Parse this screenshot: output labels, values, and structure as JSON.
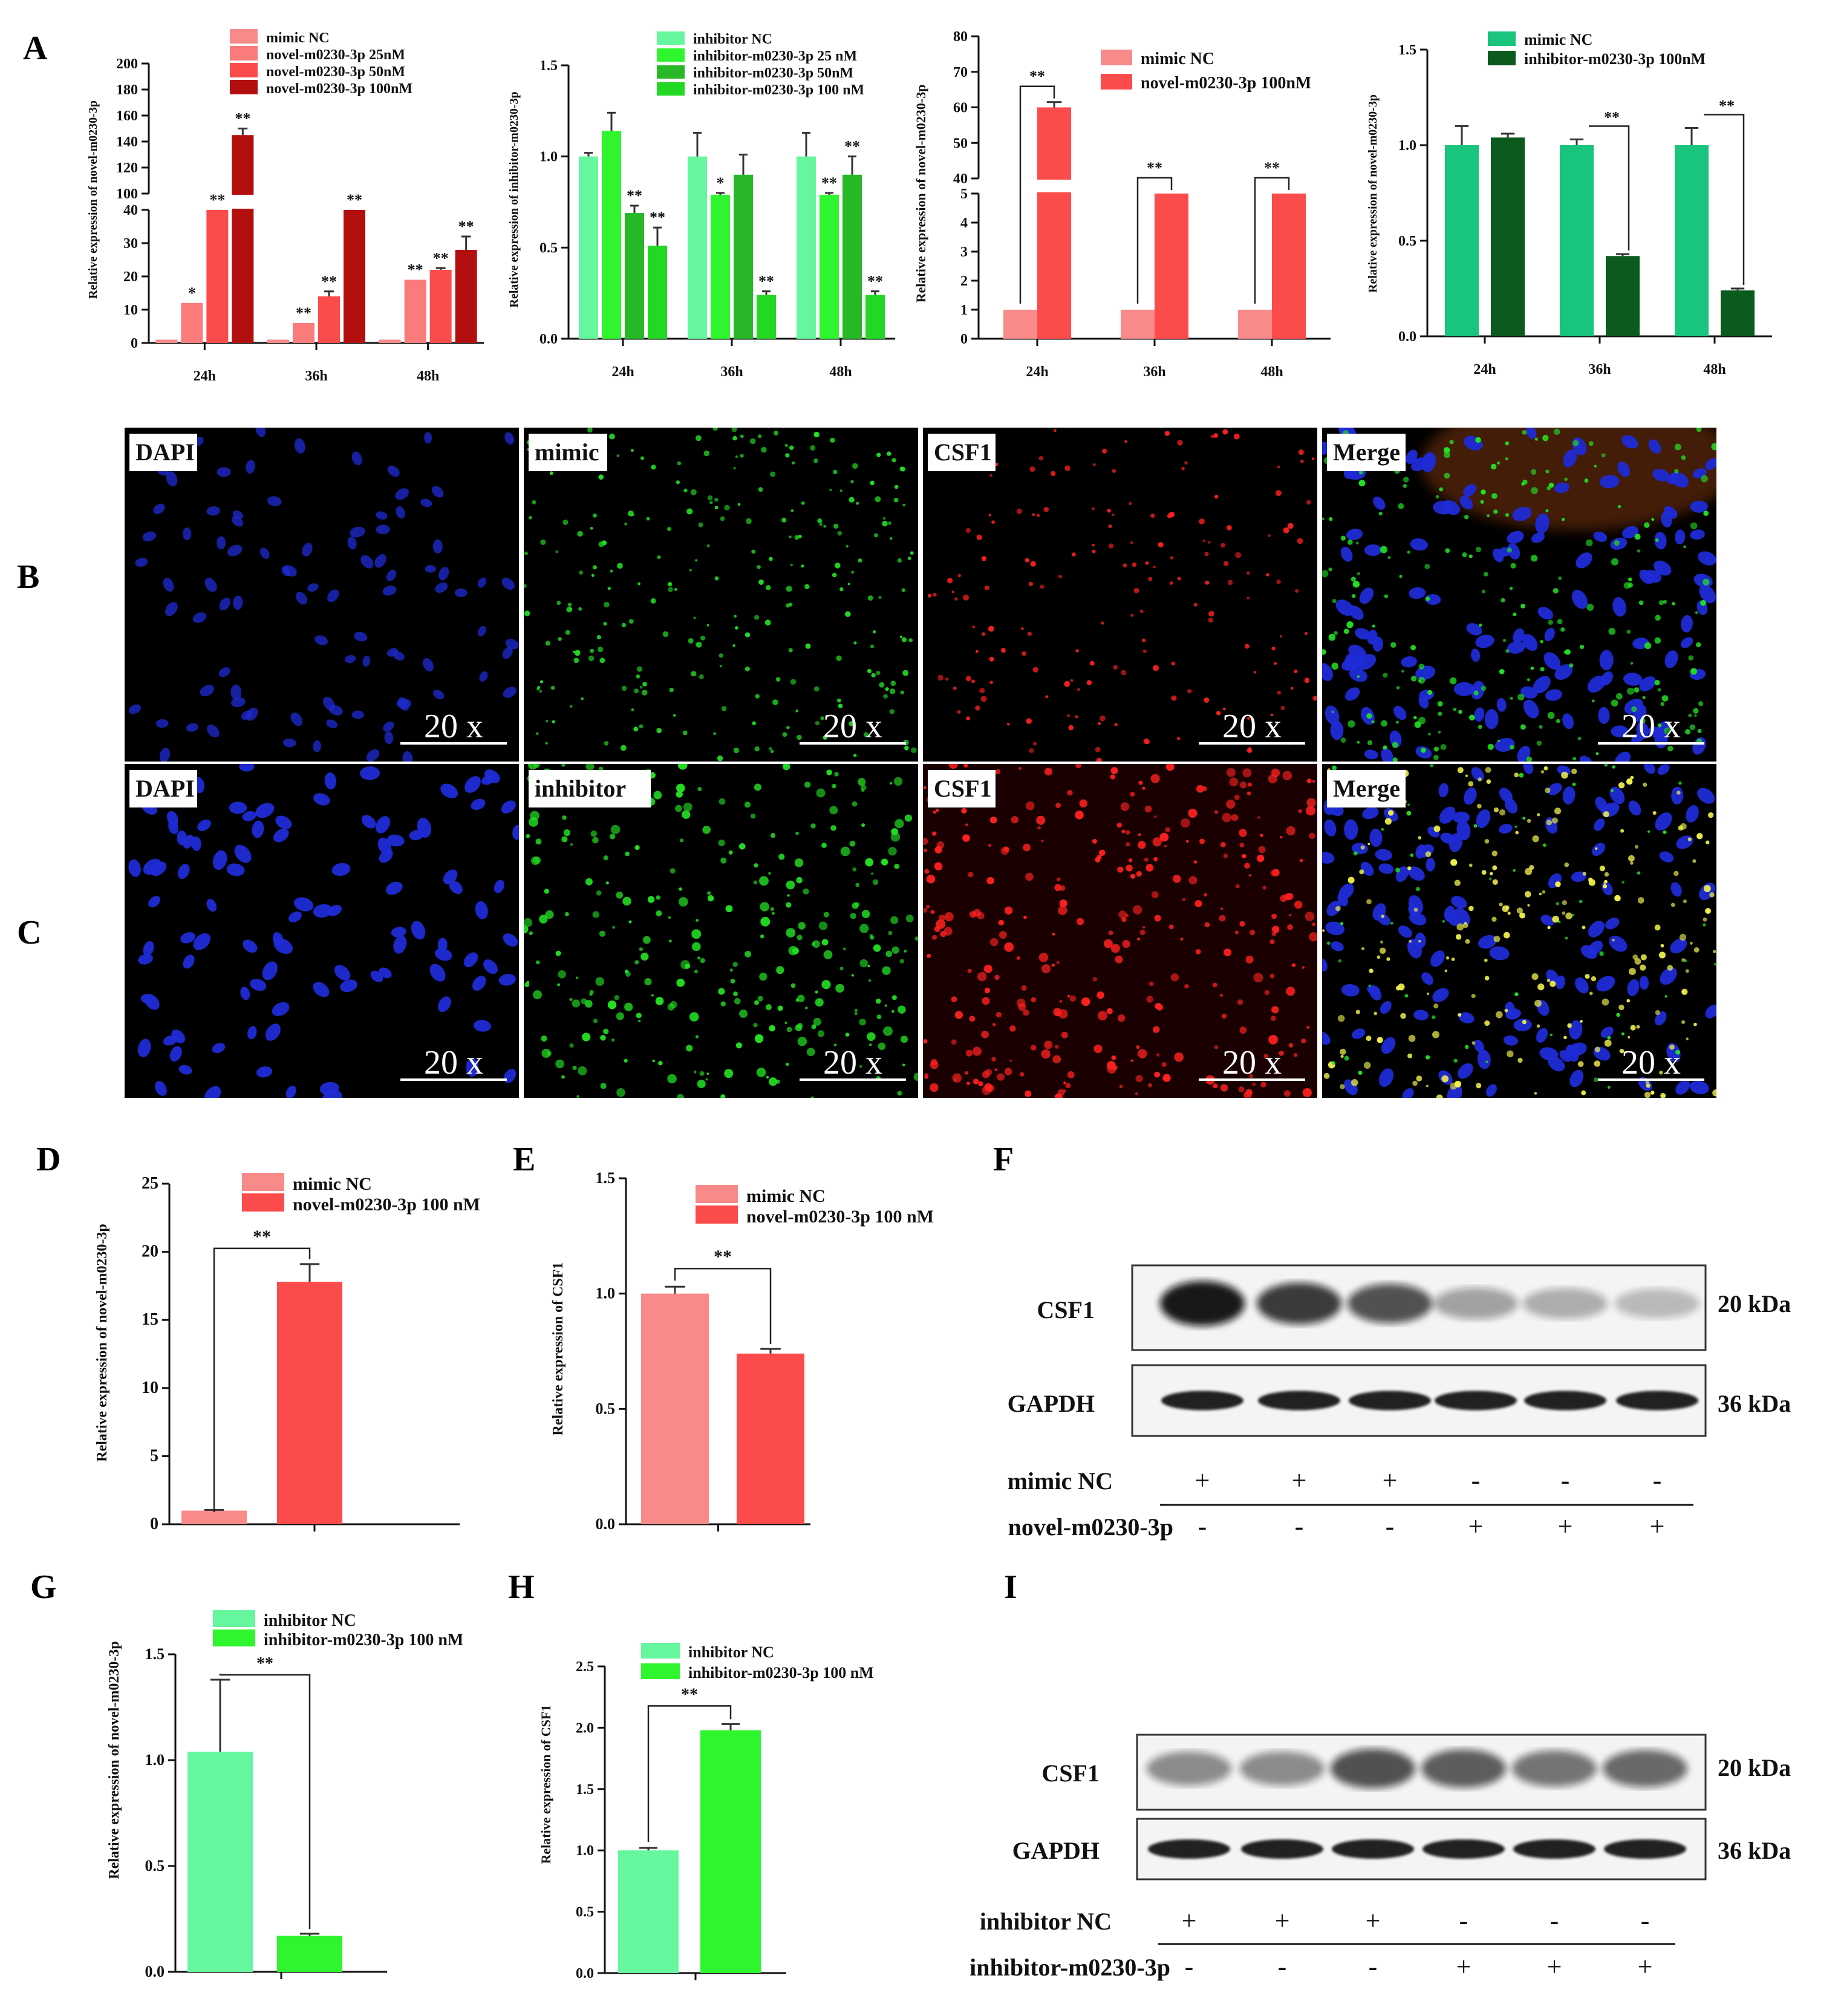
{
  "panel_letters": [
    "A",
    "B",
    "C",
    "D",
    "E",
    "F",
    "G",
    "H",
    "I"
  ],
  "colors": {
    "mimic_nc": "#f98a8a",
    "mimic_25": "#fb7a7a",
    "mimic_50": "#fc4b4b",
    "mimic_100": "#b40f0f",
    "inh_nc": "#66f79e",
    "inh_25": "#2ff52f",
    "inh_50": "#27b827",
    "inh_100": "#23d823",
    "teal_nc": "#19c47c",
    "teal_100": "#0b5a1e",
    "dapi": "#1f2bd6",
    "green_dots": "#22e022",
    "red_dots": "#ff2020",
    "yellow_dots": "#f2f24a"
  },
  "chart_data": [
    {
      "id": "A1",
      "type": "bar",
      "ylabel": "Relative  expression of novel-m0230-3p",
      "categories": [
        "24h",
        "36h",
        "48h"
      ],
      "y_lower_ticks": [
        "0",
        "10",
        "20",
        "30",
        "40"
      ],
      "y_upper_ticks": [
        "100",
        "120",
        "140",
        "160",
        "180",
        "200"
      ],
      "series": [
        {
          "name": "mimic NC",
          "color": "#f98a8a",
          "values": [
            1,
            1,
            1
          ],
          "errors": [
            0,
            0,
            0
          ]
        },
        {
          "name": "novel-m0230-3p 25nM",
          "color": "#fb7a7a",
          "values": [
            12,
            6,
            19
          ],
          "errors": [
            0,
            0,
            0
          ]
        },
        {
          "name": "novel-m0230-3p 50nM",
          "color": "#fc4b4b",
          "values": [
            40,
            14,
            22
          ],
          "errors": [
            0,
            1.5,
            0.5
          ]
        },
        {
          "name": "novel-m0230-3p 100nM",
          "color": "#b40f0f",
          "values": [
            145,
            40,
            28
          ],
          "errors": [
            5,
            0,
            4
          ]
        }
      ],
      "significance": [
        [
          "",
          "*",
          "**",
          "**"
        ],
        [
          "",
          "**",
          "**",
          "**"
        ],
        [
          "",
          "**",
          "**",
          "**"
        ]
      ]
    },
    {
      "id": "A2",
      "type": "bar",
      "ylabel": "Relative  expression of inhibitor-m0230-3p",
      "categories": [
        "24h",
        "36h",
        "48h"
      ],
      "yticks": [
        "0.0",
        "0.5",
        "1.0",
        "1.5"
      ],
      "ylim": [
        0,
        1.5
      ],
      "series": [
        {
          "name": "inhibitor NC",
          "color": "#66f79e",
          "values": [
            1.0,
            1.0,
            1.0
          ],
          "errors": [
            0.02,
            0.13,
            0.13
          ]
        },
        {
          "name": "inhibitor-m0230-3p 25 nM",
          "color": "#2ff52f",
          "values": [
            1.14,
            0.79,
            0.79
          ],
          "errors": [
            0.1,
            0.01,
            0.01
          ]
        },
        {
          "name": "inhibitor-m0230-3p 50nM",
          "color": "#27b827",
          "values": [
            0.69,
            0.9,
            0.9
          ],
          "errors": [
            0.04,
            0.11,
            0.1
          ]
        },
        {
          "name": "inhibitor-m0230-3p 100 nM",
          "color": "#23d823",
          "values": [
            0.51,
            0.24,
            0.24
          ],
          "errors": [
            0.1,
            0.02,
            0.02
          ]
        }
      ],
      "significance": [
        [
          "",
          "",
          "**",
          "**"
        ],
        [
          "",
          "*",
          "",
          "**"
        ],
        [
          "",
          "**",
          "**",
          "**"
        ]
      ]
    },
    {
      "id": "A3",
      "type": "bar",
      "ylabel": "Relative  expression of novel-m0230-3p",
      "categories": [
        "24h",
        "36h",
        "48h"
      ],
      "y_lower_ticks": [
        "0",
        "1",
        "2",
        "3",
        "4",
        "5"
      ],
      "y_upper_ticks": [
        "40",
        "50",
        "60",
        "70",
        "80"
      ],
      "series": [
        {
          "name": "mimic NC",
          "color": "#f98a8a",
          "values": [
            1,
            1,
            1
          ],
          "errors": [
            0,
            0,
            0
          ]
        },
        {
          "name": "novel-m0230-3p 100nM",
          "color": "#fc4b4b",
          "values": [
            60,
            5,
            5
          ],
          "errors": [
            1.5,
            0,
            0
          ]
        }
      ],
      "significance": [
        "**",
        "**",
        "**"
      ]
    },
    {
      "id": "A4",
      "type": "bar",
      "ylabel": "Relative  expression of novel-m0230-3p",
      "categories": [
        "24h",
        "36h",
        "48h"
      ],
      "yticks": [
        "0.0",
        "0.5",
        "1.0",
        "1.5"
      ],
      "ylim": [
        0,
        1.5
      ],
      "series": [
        {
          "name": "mimic NC",
          "color": "#19c47c",
          "values": [
            1.0,
            1.0,
            1.0
          ],
          "errors": [
            0.1,
            0.03,
            0.09
          ]
        },
        {
          "name": "inhibitor-m0230-3p 100nM",
          "color": "#0b5a1e",
          "values": [
            1.04,
            0.42,
            0.24
          ],
          "errors": [
            0.02,
            0.01,
            0.01
          ]
        }
      ],
      "significance": [
        "",
        "**",
        "**"
      ]
    },
    {
      "id": "D",
      "type": "bar",
      "ylabel": "Relative  expression of novel-m0230-3p",
      "yticks": [
        "0",
        "5",
        "10",
        "15",
        "20",
        "25"
      ],
      "ylim": [
        0,
        25
      ],
      "series": [
        {
          "name": "mimic NC",
          "color": "#f98a8a",
          "value": 1,
          "error": 0.05
        },
        {
          "name": "novel-m0230-3p 100 nM",
          "color": "#fc4b4b",
          "value": 17.8,
          "error": 1.3
        }
      ],
      "significance": "**"
    },
    {
      "id": "E",
      "type": "bar",
      "ylabel": "Relative  expression of CSF1",
      "yticks": [
        "0.0",
        "0.5",
        "1.0",
        "1.5"
      ],
      "ylim": [
        0,
        1.5
      ],
      "series": [
        {
          "name": "mimic NC",
          "color": "#f98a8a",
          "value": 1.0,
          "error": 0.03
        },
        {
          "name": "novel-m0230-3p 100 nM",
          "color": "#fc4b4b",
          "value": 0.74,
          "error": 0.02
        }
      ],
      "significance": "**"
    },
    {
      "id": "G",
      "type": "bar",
      "ylabel": "Relative  expression of novel-m0230-3p",
      "yticks": [
        "0.0",
        "0.5",
        "1.0",
        "1.5"
      ],
      "ylim": [
        0,
        1.5
      ],
      "series": [
        {
          "name": "inhibitor NC",
          "color": "#66f79e",
          "value": 1.04,
          "error": 0.34
        },
        {
          "name": "inhibitor-m0230-3p 100 nM",
          "color": "#2ff52f",
          "value": 0.17,
          "error": 0.01
        }
      ],
      "significance": "**"
    },
    {
      "id": "H",
      "type": "bar",
      "ylabel": "Relative  expression of CSF1",
      "yticks": [
        "0.0",
        "0.5",
        "1.0",
        "1.5",
        "2.0",
        "2.5"
      ],
      "ylim": [
        0,
        2.5
      ],
      "series": [
        {
          "name": "inhibitor NC",
          "color": "#66f79e",
          "value": 1.0,
          "error": 0.02
        },
        {
          "name": "inhibitor-m0230-3p 100 nM",
          "color": "#2ff52f",
          "value": 1.98,
          "error": 0.05
        }
      ],
      "significance": "**"
    }
  ],
  "micrographs": {
    "row_b": [
      "DAPI",
      "mimic",
      "CSF1",
      "Merge"
    ],
    "row_c": [
      "DAPI",
      "inhibitor",
      "CSF1",
      "Merge"
    ],
    "scale": "20 x"
  },
  "blot_f": {
    "band_top": "CSF1",
    "band_bottom": "GAPDH",
    "mw_top": "20 kDa",
    "mw_bottom": "36 kDa",
    "row1_label": "mimic NC",
    "row2_label": "novel-m0230-3p",
    "row1_signs": [
      "+",
      "+",
      "+",
      "-",
      "-",
      "-"
    ],
    "row2_signs": [
      "-",
      "-",
      "-",
      "+",
      "+",
      "+"
    ],
    "csf1_intensity": [
      0.95,
      0.8,
      0.7,
      0.35,
      0.3,
      0.25
    ]
  },
  "blot_i": {
    "band_top": "CSF1",
    "band_bottom": "GAPDH",
    "mw_top": "20 kDa",
    "mw_bottom": "36 kDa",
    "row1_label": "inhibitor NC",
    "row2_label": "inhibitor-m0230-3p",
    "row1_signs": [
      "+",
      "+",
      "+",
      "-",
      "-",
      "-"
    ],
    "row2_signs": [
      "-",
      "-",
      "-",
      "+",
      "+",
      "+"
    ],
    "csf1_intensity": [
      0.45,
      0.45,
      0.7,
      0.65,
      0.55,
      0.6
    ]
  }
}
